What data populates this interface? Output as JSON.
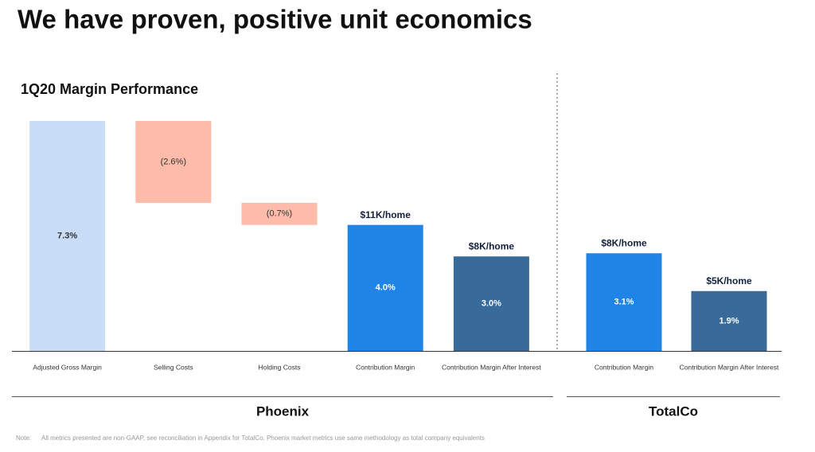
{
  "chart_data": {
    "type": "waterfall",
    "title": "We have proven, positive unit economics",
    "subtitle": "1Q20 Margin Performance",
    "categories": [
      "Adjusted Gross Margin",
      "Selling Costs",
      "Holding Costs",
      "Contribution Margin",
      "Contribution Margin After Interest",
      "Contribution Margin",
      "Contribution Margin After Interest"
    ],
    "values": [
      7.3,
      -2.6,
      -0.7,
      4.0,
      3.0,
      3.1,
      1.9
    ],
    "value_labels": [
      "7.3%",
      "(2.6%)",
      "(0.7%)",
      "4.0%",
      "3.0%",
      "3.1%",
      "1.9%"
    ],
    "measure": [
      "absolute",
      "relative",
      "relative",
      "absolute",
      "absolute",
      "absolute",
      "absolute"
    ],
    "colors": [
      "#c9ddf8",
      "#fdbcaa",
      "#fdbcaa",
      "#1f84e6",
      "#386a9a",
      "#1f84e6",
      "#386a9a"
    ],
    "annotations": [
      null,
      null,
      null,
      "$11K/home",
      "$8K/home",
      "$8K/home",
      "$5K/home"
    ],
    "groups": [
      {
        "name": "Phoenix",
        "count": 5
      },
      {
        "name": "TotalCo",
        "count": 2
      }
    ]
  },
  "note": {
    "label": "Note:",
    "text": "All metrics presented are non-GAAP, see reconciliation in Appendix for TotalCo. Phoenix market metrics use same methodology as total company equivalents"
  }
}
